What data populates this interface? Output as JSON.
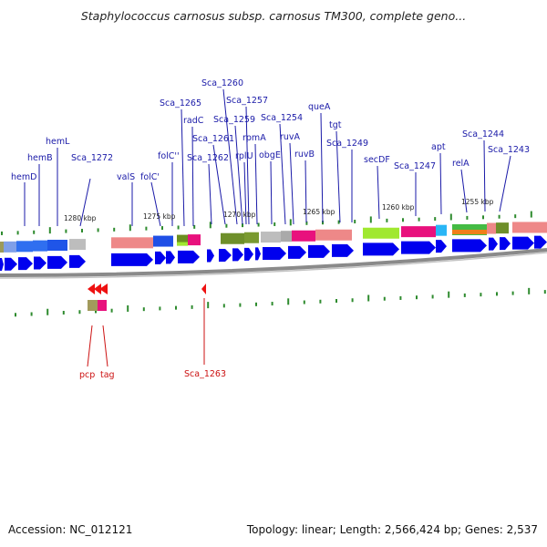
{
  "title": "Staphylococcus carnosus subsp. carnosus TM300, complete geno...",
  "footer": {
    "accession": "Accession: NC_012121",
    "summary": "Topology: linear; Length: 2,566,424 bp; Genes: 2,537"
  },
  "scale_labels": [
    "1280 kbp",
    "1275 kbp",
    "1270 kbp",
    "1265 kbp",
    "1260 kbp",
    "1255 kbp"
  ],
  "gene_labels": [
    "hemD",
    "hemB",
    "hemL",
    "Sca_1272",
    "valS",
    "folC'",
    "folC''",
    "Sca_1265",
    "radC",
    "Sca_1262",
    "Sca_1261",
    "Sca_1260",
    "Sca_1259",
    "Sca_1257",
    "rplU",
    "rpmA",
    "obgE",
    "Sca_1254",
    "ruvA",
    "ruvB",
    "queA",
    "tgt",
    "Sca_1249",
    "secDF",
    "Sca_1247",
    "apt",
    "relA",
    "Sca_1244",
    "Sca_1243"
  ],
  "lower_labels": [
    "pcp",
    "tag",
    "Sca_1263"
  ],
  "colors": {
    "gene_blue": "#0000ee",
    "label_blue": "#1a1aa8",
    "label_red": "#cc1111",
    "tick_green": "#2e8b2e",
    "backbone_gray": "#888888"
  }
}
